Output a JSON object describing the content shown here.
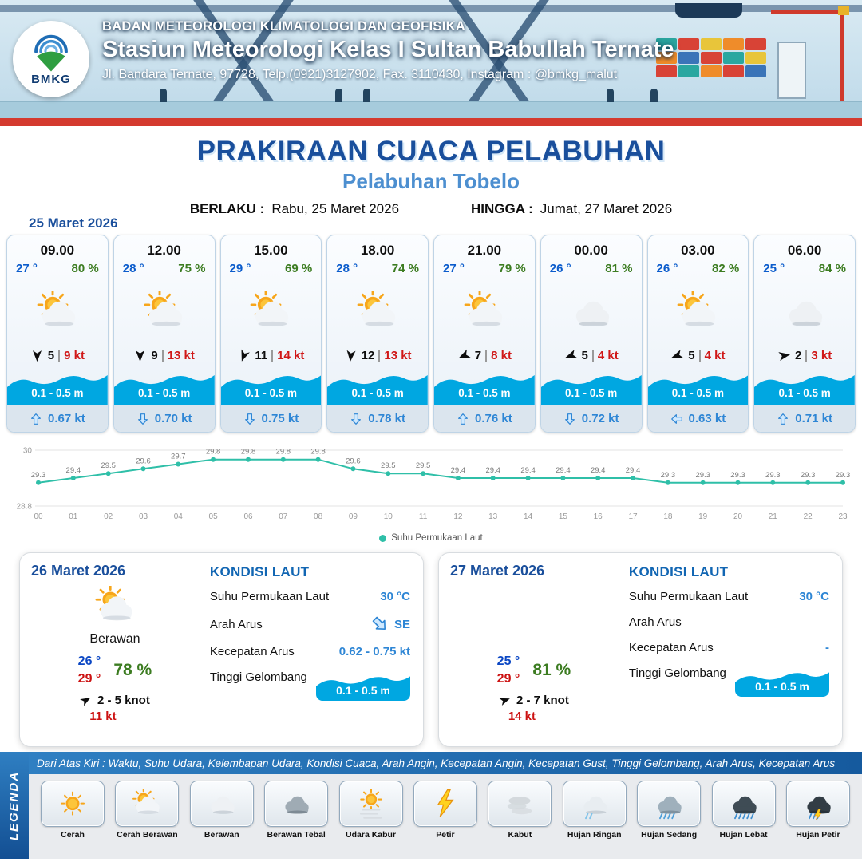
{
  "colors": {
    "wave_blue": "#00a7e1",
    "chart_teal": "#2fbfa8",
    "temp_blue": "#0b5ccc",
    "humidity_green": "#3c7c21",
    "gust_red": "#d01818",
    "current_blue": "#2e86d5",
    "title_blue": "#1a4f9c",
    "subtitle_blue": "#4d8fd0",
    "stripe_red": "#d43a2f"
  },
  "header": {
    "logo_label": "BMKG",
    "org": "BADAN METEOROLOGI KLIMATOLOGI DAN GEOFISIKA",
    "station": "Stasiun Meteorologi Kelas I Sultan Babullah Ternate",
    "address": "Jl. Bandara Ternate, 97728, Telp.(0921)3127902, Fax. 3110430, Instagram : @bmkg_malut"
  },
  "title": {
    "main": "PRAKIRAAN CUACA PELABUHAN",
    "subtitle": "Pelabuhan Tobelo",
    "berlaku_label": "BERLAKU :",
    "berlaku_value": "Rabu, 25 Maret 2026",
    "hingga_label": "HINGGA :",
    "hingga_value": "Jumat, 27 Maret 2026"
  },
  "forecast_date": "25 Maret 2026",
  "hourly_cards": [
    {
      "time": "09.00",
      "temp": "27 °",
      "humidity": "80 %",
      "icon": "sun-cloud",
      "wind_deg": 180,
      "wind_speed": "5",
      "gust": "9 kt",
      "wave": "0.1 - 0.5 m",
      "current_deg": 0,
      "current_speed": "0.67 kt"
    },
    {
      "time": "12.00",
      "temp": "28 °",
      "humidity": "75 %",
      "icon": "sun-cloud",
      "wind_deg": 180,
      "wind_speed": "9",
      "gust": "13 kt",
      "wave": "0.1 - 0.5 m",
      "current_deg": 180,
      "current_speed": "0.70 kt"
    },
    {
      "time": "15.00",
      "temp": "29 °",
      "humidity": "69 %",
      "icon": "sun-cloud",
      "wind_deg": 200,
      "wind_speed": "11",
      "gust": "14 kt",
      "wave": "0.1 - 0.5 m",
      "current_deg": 180,
      "current_speed": "0.75 kt"
    },
    {
      "time": "18.00",
      "temp": "28 °",
      "humidity": "74 %",
      "icon": "sun-cloud",
      "wind_deg": 185,
      "wind_speed": "12",
      "gust": "13 kt",
      "wave": "0.1 - 0.5 m",
      "current_deg": 180,
      "current_speed": "0.78 kt"
    },
    {
      "time": "21.00",
      "temp": "27 °",
      "humidity": "79 %",
      "icon": "sun-cloud",
      "wind_deg": 245,
      "wind_speed": "7",
      "gust": "8 kt",
      "wave": "0.1 - 0.5 m",
      "current_deg": 0,
      "current_speed": "0.76 kt"
    },
    {
      "time": "00.00",
      "temp": "26 °",
      "humidity": "81 %",
      "icon": "cloud",
      "wind_deg": 250,
      "wind_speed": "5",
      "gust": "4 kt",
      "wave": "0.1 - 0.5 m",
      "current_deg": 180,
      "current_speed": "0.72 kt"
    },
    {
      "time": "03.00",
      "temp": "26 °",
      "humidity": "82 %",
      "icon": "sun-cloud",
      "wind_deg": 250,
      "wind_speed": "5",
      "gust": "4 kt",
      "wave": "0.1 - 0.5 m",
      "current_deg": 270,
      "current_speed": "0.63 kt"
    },
    {
      "time": "06.00",
      "temp": "25 °",
      "humidity": "84 %",
      "icon": "cloud",
      "wind_deg": 80,
      "wind_speed": "2",
      "gust": "3 kt",
      "wave": "0.1 - 0.5 m",
      "current_deg": 0,
      "current_speed": "0.71 kt"
    }
  ],
  "chart_data": {
    "type": "line",
    "series_name": "Suhu Permukaan Laut",
    "x_labels": [
      "00",
      "01",
      "02",
      "03",
      "04",
      "05",
      "06",
      "07",
      "08",
      "09",
      "10",
      "11",
      "12",
      "13",
      "14",
      "15",
      "16",
      "17",
      "18",
      "19",
      "20",
      "21",
      "22",
      "23"
    ],
    "values": [
      29.3,
      29.4,
      29.5,
      29.6,
      29.7,
      29.8,
      29.8,
      29.8,
      29.8,
      29.6,
      29.5,
      29.5,
      29.4,
      29.4,
      29.4,
      29.4,
      29.4,
      29.4,
      29.3,
      29.3,
      29.3,
      29.3,
      29.3,
      29.3
    ],
    "ylim": [
      28.8,
      30
    ],
    "yticks": [
      28.8,
      30
    ],
    "line_color": "#2fbfa8",
    "grid": true,
    "legend_position": "bottom"
  },
  "day_cards": [
    {
      "date": "26 Maret 2026",
      "icon": "sun-cloud",
      "condition": "Berawan",
      "temp_min": "26 °",
      "temp_max": "29 °",
      "humidity": "78 %",
      "wind_deg": 60,
      "wind_text": "2 - 5 knot",
      "gust": "11 kt",
      "sea": {
        "heading": "KONDISI LAUT",
        "sst_label": "Suhu Permukaan Laut",
        "sst_value": "30 °C",
        "dir_label": "Arah Arus",
        "dir_value": "SE",
        "dir_deg": 135,
        "speed_label": "Kecepatan Arus",
        "speed_value": "0.62 - 0.75 kt",
        "wave_label": "Tinggi Gelombang",
        "wave_value": "0.1 - 0.5 m"
      }
    },
    {
      "date": "27 Maret 2026",
      "icon": null,
      "condition": "",
      "temp_min": "25 °",
      "temp_max": "29 °",
      "humidity": "81 %",
      "wind_deg": 70,
      "wind_text": "2 - 7 knot",
      "gust": "14 kt",
      "sea": {
        "heading": "KONDISI LAUT",
        "sst_label": "Suhu Permukaan Laut",
        "sst_value": "30 °C",
        "dir_label": "Arah Arus",
        "dir_value": "",
        "dir_deg": null,
        "speed_label": "Kecepatan Arus",
        "speed_value": "-",
        "wave_label": "Tinggi Gelombang",
        "wave_value": "0.1 - 0.5 m"
      }
    }
  ],
  "legend": {
    "panel_label": "LEGENDA",
    "caption": "Dari Atas Kiri : Waktu, Suhu Udara, Kelembapan Udara, Kondisi Cuaca, Arah Angin, Kecepatan Angin, Kecepatan Gust, Tinggi Gelombang, Arah Arus, Kecepatan Arus",
    "items": [
      {
        "label": "Cerah",
        "icon": "sun"
      },
      {
        "label": "Cerah Berawan",
        "icon": "sun-cloud"
      },
      {
        "label": "Berawan",
        "icon": "cloud"
      },
      {
        "label": "Berawan Tebal",
        "icon": "cloud-dark"
      },
      {
        "label": "Udara Kabur",
        "icon": "sun-haze"
      },
      {
        "label": "Petir",
        "icon": "lightning"
      },
      {
        "label": "Kabut",
        "icon": "fog"
      },
      {
        "label": "Hujan Ringan",
        "icon": "rain-light"
      },
      {
        "label": "Hujan Sedang",
        "icon": "rain-medium"
      },
      {
        "label": "Hujan Lebat",
        "icon": "rain-heavy"
      },
      {
        "label": "Hujan Petir",
        "icon": "rain-thunder"
      }
    ]
  }
}
